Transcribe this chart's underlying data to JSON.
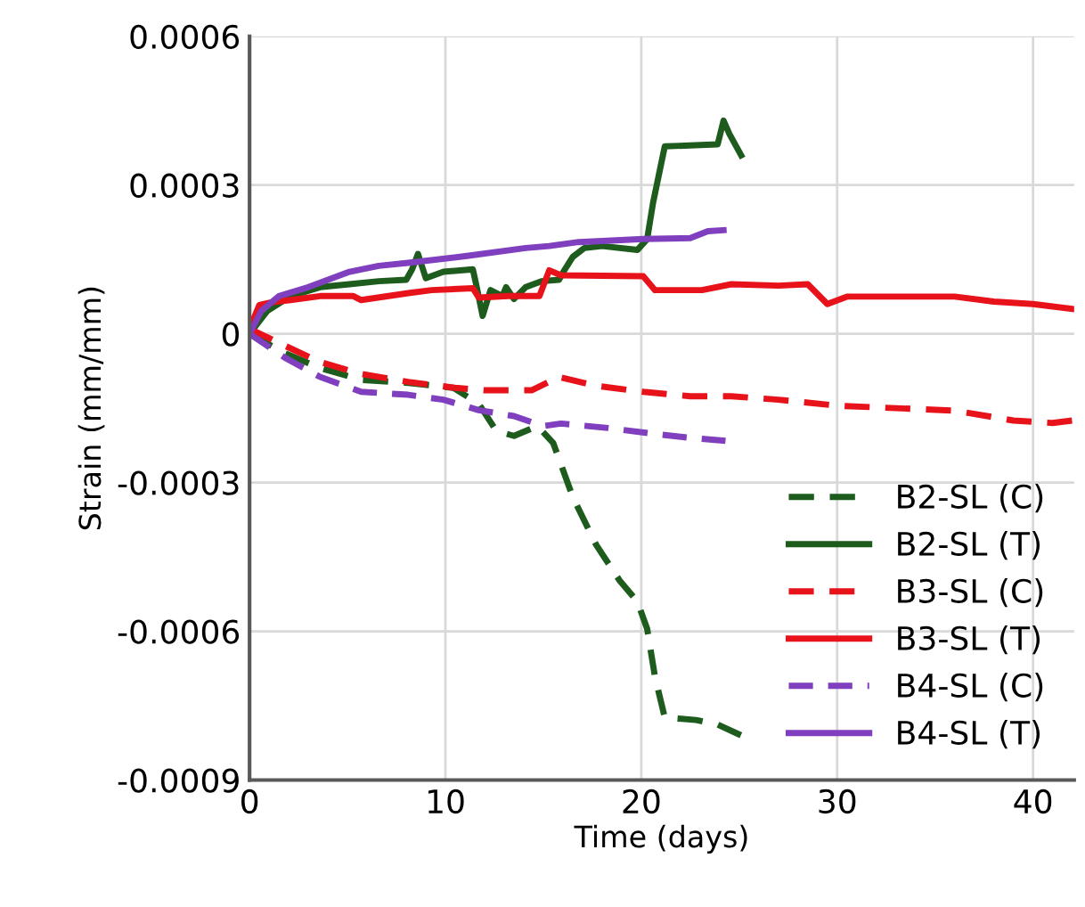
{
  "chart_data": {
    "type": "line",
    "xlabel": "Time (days)",
    "ylabel": "Strain (mm/mm)",
    "xlim": [
      0,
      42.1
    ],
    "xticks": [
      0,
      10,
      20,
      30,
      40
    ],
    "ylim": [
      -0.0009,
      0.0006
    ],
    "yticks": [
      {
        "value": -0.0009,
        "label": "-0.0009"
      },
      {
        "value": -0.0006,
        "label": "-0.0006"
      },
      {
        "value": -0.0003,
        "label": "-0.0003"
      },
      0,
      {
        "value": 0.0003,
        "label": "0.0003"
      },
      {
        "value": 0.0006,
        "label": "0.0006"
      }
    ],
    "grid": true,
    "legend": "bottom right",
    "series": [
      {
        "name": "B2-SL (C)",
        "color": "#1e5c1e",
        "line_style": "dashed",
        "x": [
          0,
          1.8,
          3.6,
          5.7,
          8.1,
          10.4,
          11.7,
          12.6,
          13.5,
          14.7,
          15.5,
          16.5,
          17.7,
          18.9,
          19.8,
          20.3,
          20.7,
          21.2,
          22.8,
          23.9,
          25.1
        ],
        "values": [
          0,
          -3.9e-05,
          -6.9e-05,
          -9.3e-05,
          -9.9e-05,
          -0.000109,
          -0.000141,
          -0.000196,
          -0.000206,
          -0.000186,
          -0.00022,
          -0.000329,
          -0.000426,
          -0.000498,
          -0.00054,
          -0.000595,
          -0.000692,
          -0.000774,
          -0.000779,
          -0.000788,
          -0.00081
        ]
      },
      {
        "name": "B2-SL (T)",
        "color": "#1e5c1e",
        "line_style": "solid",
        "x": [
          0,
          0.9,
          2.1,
          3.6,
          5.1,
          6.6,
          8,
          8.3,
          8.6,
          9,
          9.9,
          11.4,
          11.6,
          11.9,
          12.3,
          12.9,
          13.1,
          13.5,
          14.1,
          14.9,
          15.8,
          16.1,
          16.5,
          17.1,
          18,
          19.8,
          20.3,
          20.6,
          21.2,
          23.9,
          24.2,
          24.5,
          25.1
        ],
        "values": [
          0,
          4.6e-05,
          7.6e-05,
          9.4e-05,
          0.0001,
          0.000106,
          0.000109,
          0.00013,
          0.000161,
          0.000112,
          0.000125,
          0.00013,
          9.4e-05,
          3.6e-05,
          8.8e-05,
          7.6e-05,
          9.4e-05,
          7e-05,
          9.4e-05,
          0.000106,
          0.000109,
          0.00013,
          0.000155,
          0.000173,
          0.000177,
          0.000169,
          0.000191,
          0.000264,
          0.000378,
          0.000382,
          0.00043,
          0.000403,
          0.00036
        ]
      },
      {
        "name": "B3-SL (C)",
        "color": "#e8131a",
        "line_style": "dashed",
        "x": [
          0,
          1.8,
          3.6,
          5.7,
          8.1,
          10.5,
          12,
          14.4,
          15.8,
          17.7,
          20.1,
          22.5,
          24.6,
          27,
          30,
          33,
          36,
          39,
          41,
          42
        ],
        "values": [
          1e-05,
          -2.4e-05,
          -5.7e-05,
          -8.1e-05,
          -9.7e-05,
          -0.000109,
          -0.000114,
          -0.000114,
          -8.7e-05,
          -0.000105,
          -0.000117,
          -0.000126,
          -0.000126,
          -0.000133,
          -0.000145,
          -0.00015,
          -0.000155,
          -0.000175,
          -0.00018,
          -0.000175
        ]
      },
      {
        "name": "B3-SL (T)",
        "color": "#e8131a",
        "line_style": "solid",
        "x": [
          0,
          0.5,
          1.2,
          2.1,
          3.6,
          5.3,
          5.7,
          8.1,
          9.3,
          11.4,
          11.7,
          13.2,
          14.8,
          15.3,
          15.9,
          20.1,
          20.7,
          23.1,
          24.6,
          27,
          28.5,
          29.5,
          30.5,
          36,
          38,
          40,
          42
        ],
        "values": [
          1e-05,
          5.8e-05,
          6.4e-05,
          6.8e-05,
          7.6e-05,
          7.6e-05,
          6.8e-05,
          8.2e-05,
          8.8e-05,
          9.2e-05,
          7.3e-05,
          7.6e-05,
          7.6e-05,
          0.000128,
          0.000118,
          0.000116,
          8.8e-05,
          8.8e-05,
          0.0001,
          9.7e-05,
          0.0001,
          6e-05,
          7.5e-05,
          7.5e-05,
          6.5e-05,
          6e-05,
          5e-05
        ]
      },
      {
        "name": "B4-SL (C)",
        "color": "#7f3fbf",
        "line_style": "dashed",
        "x": [
          0,
          1.8,
          3.6,
          5.7,
          8.1,
          9.9,
          11.7,
          13.5,
          15,
          15.9,
          18.3,
          20.7,
          22.5,
          24.3
        ],
        "values": [
          0,
          -4.8e-05,
          -8.7e-05,
          -0.000117,
          -0.000123,
          -0.000133,
          -0.000154,
          -0.000166,
          -0.000186,
          -0.000181,
          -0.00019,
          -0.000202,
          -0.00021,
          -0.000216
        ]
      },
      {
        "name": "B4-SL (T)",
        "color": "#7f3fbf",
        "line_style": "solid",
        "x": [
          0,
          0.6,
          1.5,
          3,
          5.1,
          6.6,
          8.1,
          11.1,
          14.1,
          15.3,
          16.8,
          20.1,
          22.5,
          23.4,
          24.2
        ],
        "values": [
          0,
          4.6e-05,
          7.6e-05,
          9.4e-05,
          0.000125,
          0.000137,
          0.000143,
          0.000157,
          0.000173,
          0.000177,
          0.000185,
          0.000191,
          0.000193,
          0.000207,
          0.000209
        ]
      }
    ]
  }
}
